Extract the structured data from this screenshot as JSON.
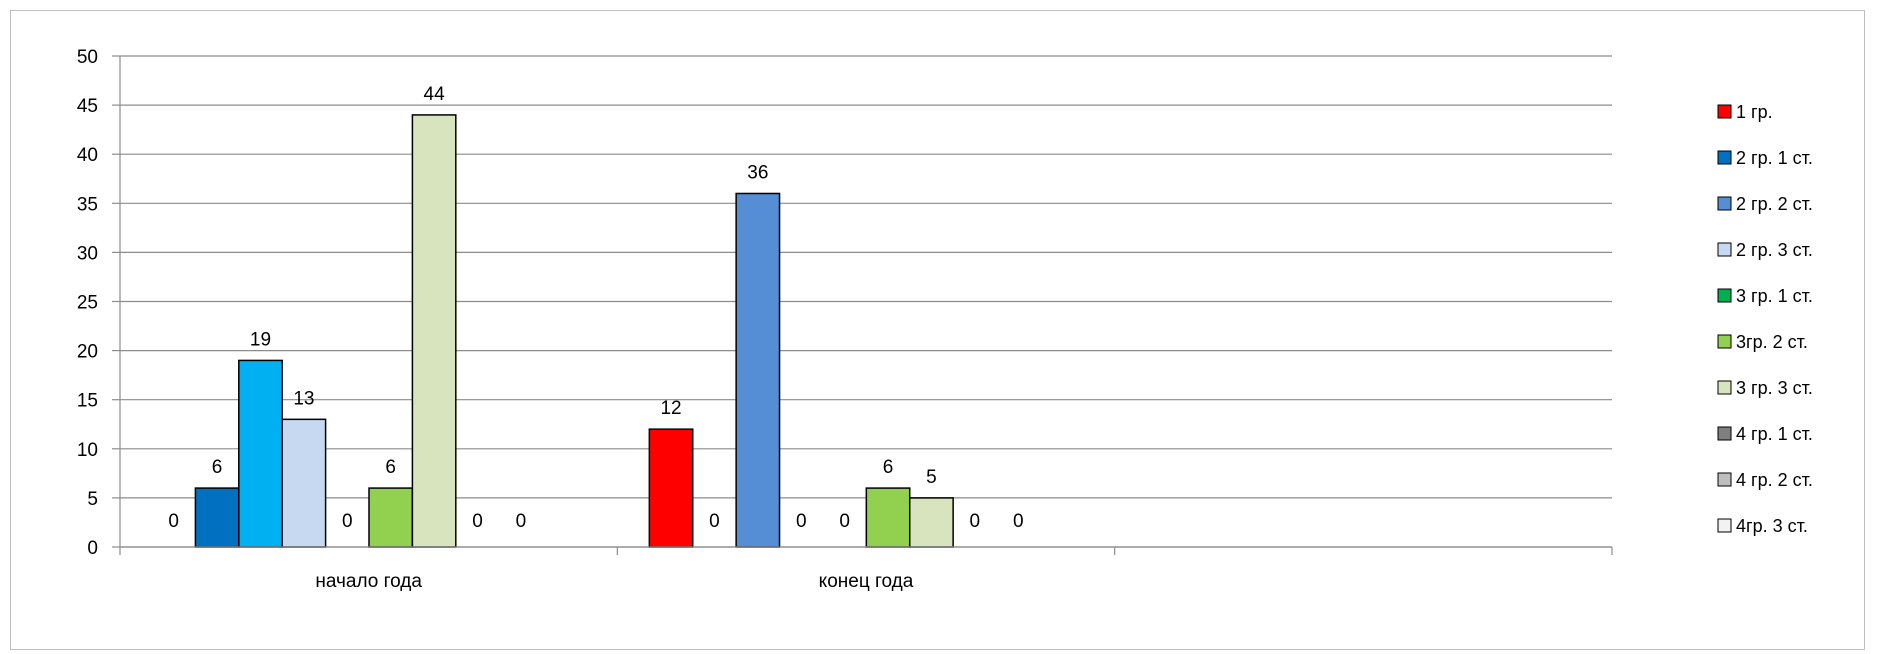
{
  "chart_data": {
    "type": "bar",
    "categories": [
      "начало года",
      "конец года",
      ""
    ],
    "ylim": [
      0,
      50
    ],
    "yticks": [
      0,
      5,
      10,
      15,
      20,
      25,
      30,
      35,
      40,
      45,
      50
    ],
    "grid": true,
    "legend_position": "right",
    "series": [
      {
        "name": "1 гр.",
        "color": "#ff0000",
        "values": [
          0,
          12,
          null
        ]
      },
      {
        "name": "2 гр. 1 ст.",
        "color": "#0070c0",
        "values": [
          6,
          0,
          null
        ]
      },
      {
        "name": "2 гр. 2 ст.",
        "color": "#00b0f0",
        "values": [
          19,
          36,
          null
        ]
      },
      {
        "name": "2 гр. 3 ст.",
        "color": "#c6d9f1",
        "values": [
          13,
          0,
          null
        ]
      },
      {
        "name": "3 гр. 1 ст.",
        "color": "#00b050",
        "values": [
          0,
          0,
          null
        ]
      },
      {
        "name": "3гр. 2 ст.",
        "color": "#92d050",
        "values": [
          6,
          6,
          null
        ]
      },
      {
        "name": "3 гр. 3 ст.",
        "color": "#d7e4bd",
        "values": [
          44,
          5,
          null
        ]
      },
      {
        "name": "4 гр. 1 ст.",
        "color": "#7f7f7f",
        "values": [
          0,
          0,
          null
        ]
      },
      {
        "name": "4 гр. 2 ст.",
        "color": "#bfbfbf",
        "values": [
          0,
          0,
          null
        ]
      },
      {
        "name": "4гр. 3 ст.",
        "color": "#f2f2f2",
        "values": [
          null,
          null,
          null
        ]
      }
    ],
    "bar_color_overrides": [
      {
        "series": 2,
        "category": 1,
        "color": "#558ed5"
      }
    ],
    "legend_swatch_overrides": [
      {
        "series": 2,
        "color": "#558ed5"
      },
      {
        "series": 5,
        "color": "#92d050"
      }
    ]
  }
}
